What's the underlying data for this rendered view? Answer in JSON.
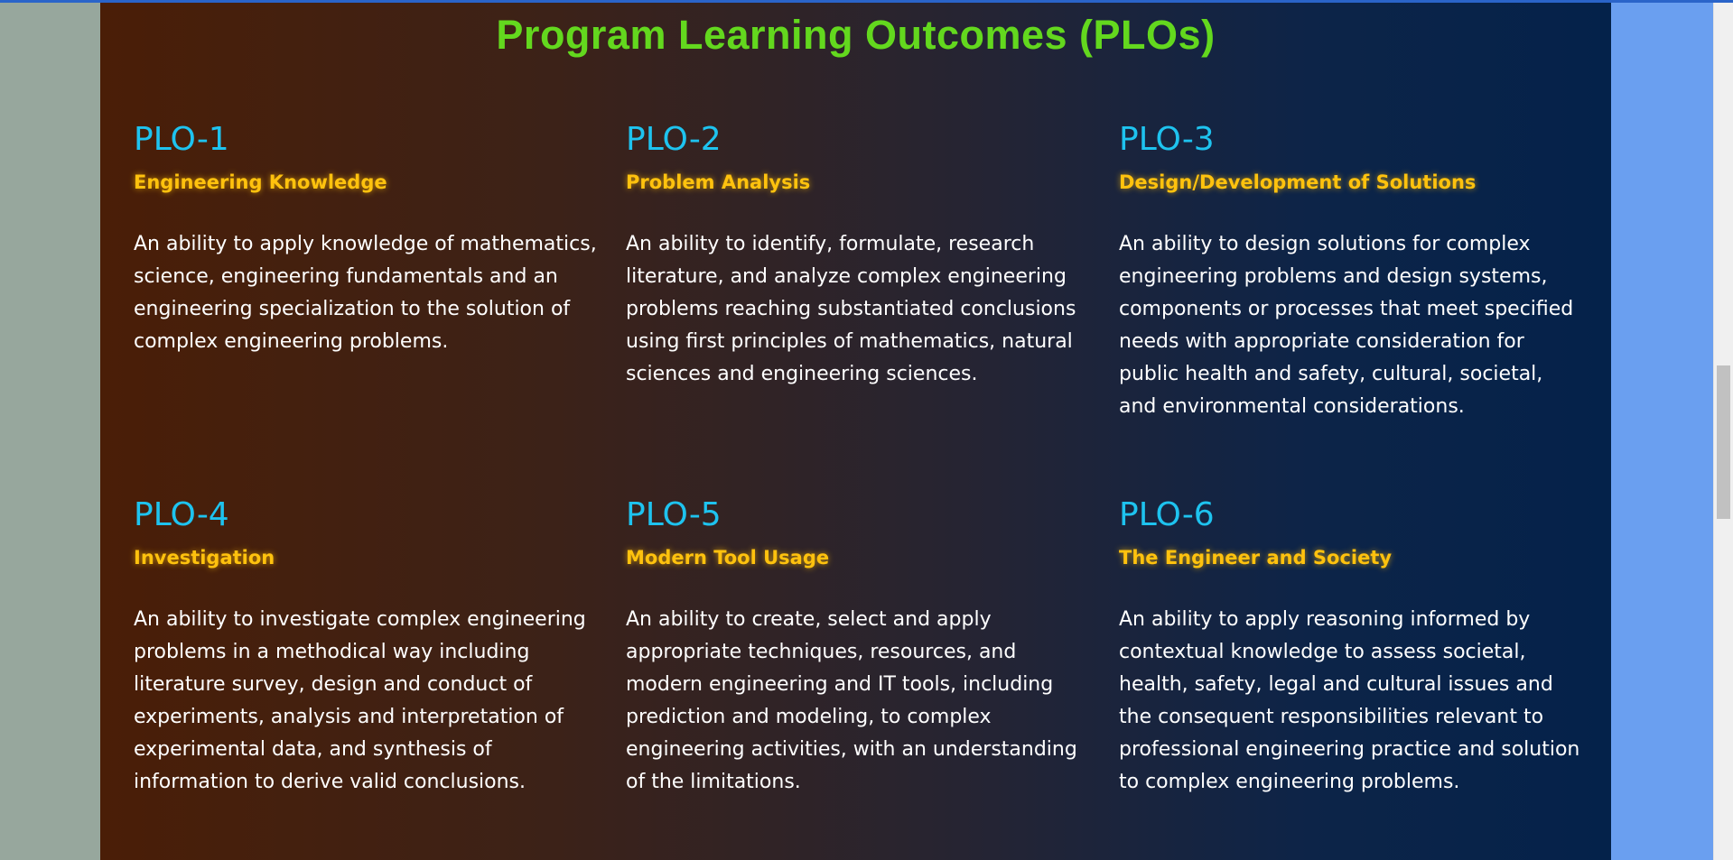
{
  "page": {
    "title": "Program Learning Outcomes (PLOs)"
  },
  "colors": {
    "title": "#63d81e",
    "plo_code": "#1ec3ef",
    "plo_name": "#ffc20e",
    "description": "#ffffff"
  },
  "plos": [
    {
      "code": "PLO-1",
      "name": "Engineering Knowledge",
      "description": "An ability to apply knowledge of mathematics, science, engineering fundamentals and an engineering specialization to the solution of complex engineering problems."
    },
    {
      "code": "PLO-2",
      "name": "Problem Analysis",
      "description": "An ability to identify, formulate, research literature, and analyze complex engineering problems reaching substantiated conclusions using first principles of mathematics, natural sciences and engineering sciences."
    },
    {
      "code": "PLO-3",
      "name": "Design/Development of Solutions",
      "description": "An ability to design solutions for complex engineering problems and design systems, components or processes that meet specified needs with appropriate consideration for public health and safety, cultural, societal, and environmental considerations."
    },
    {
      "code": "PLO-4",
      "name": "Investigation",
      "description": "An ability to investigate complex engineering problems in a methodical way including literature survey, design and conduct of experiments, analysis and interpretation of experimental data, and synthesis of information to derive valid conclusions."
    },
    {
      "code": "PLO-5",
      "name": "Modern Tool Usage",
      "description": "An ability to create, select and apply appropriate techniques, resources, and modern engineering and IT tools, including prediction and modeling, to complex engineering activities, with an understanding of the limitations."
    },
    {
      "code": "PLO-6",
      "name": "The Engineer and Society",
      "description": "An ability to apply reasoning informed by contextual knowledge to assess societal, health, safety, legal and cultural issues and the consequent responsibilities relevant to professional engineering practice and solution to complex engineering problems."
    }
  ]
}
